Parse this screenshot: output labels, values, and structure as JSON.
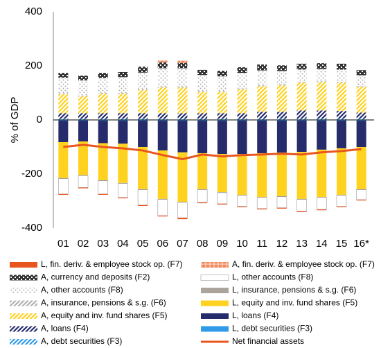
{
  "chart_data": {
    "type": "bar",
    "stacked": true,
    "y_label": "% of GDP",
    "categories": [
      "01",
      "02",
      "03",
      "04",
      "05",
      "06",
      "07",
      "08",
      "09",
      "10",
      "11",
      "12",
      "13",
      "14",
      "15",
      "16*"
    ],
    "ylim": [
      -400,
      400
    ],
    "yticks": [
      -400,
      -200,
      0,
      200,
      400
    ],
    "series": [
      {
        "name": "L, fin. deriv. & employee stock op. (F7)",
        "color": "#e8561e",
        "pattern": "solid",
        "values": [
          -3,
          -3,
          -3,
          -3,
          -3,
          -3,
          -5,
          -3,
          -3,
          -3,
          -3,
          -3,
          -3,
          -3,
          -3,
          -3
        ]
      },
      {
        "name": "A, fin. deriv. & employee stock op. (F7)",
        "color": "#f08a5a",
        "pattern": "grid",
        "values": [
          0,
          0,
          0,
          0,
          0,
          8,
          8,
          0,
          0,
          0,
          0,
          0,
          0,
          0,
          0,
          0
        ]
      },
      {
        "name": "A, currency and deposits (F2)",
        "color": "#333333",
        "pattern": "check",
        "values": [
          18,
          18,
          19,
          19,
          22,
          22,
          20,
          19,
          21,
          21,
          22,
          21,
          22,
          22,
          22,
          19
        ]
      },
      {
        "name": "L, other accounts (F8)",
        "color": "#ffffff",
        "pattern": "solid",
        "values": [
          -57,
          -44,
          -49,
          -52,
          -57,
          -60,
          -57,
          -47,
          -41,
          -41,
          -41,
          -41,
          -44,
          -44,
          -41,
          -37
        ]
      },
      {
        "name": "A, other accounts (F8)",
        "color": "#aaaaaa",
        "pattern": "dots",
        "values": [
          58,
          56,
          55,
          58,
          62,
          68,
          68,
          60,
          55,
          58,
          55,
          50,
          45,
          45,
          45,
          40
        ]
      },
      {
        "name": "L, insurance, pensions & s.g. (F6)",
        "color": "#aaa49c",
        "pattern": "solid",
        "values": [
          -2,
          -2,
          -2,
          -2,
          -2,
          -2,
          -2,
          -2,
          -2,
          -2,
          -2,
          -2,
          -2,
          -2,
          -2,
          -2
        ]
      },
      {
        "name": "A, insurance, pensions & s.g. (F6)",
        "color": "#b0b0b0",
        "pattern": "hatch",
        "values": [
          3,
          3,
          3,
          3,
          3,
          3,
          3,
          3,
          3,
          3,
          3,
          3,
          3,
          3,
          3,
          3
        ]
      },
      {
        "name": "L, equity and inv. fund shares (F5)",
        "color": "#ffd21f",
        "pattern": "solid",
        "values": [
          -133,
          -124,
          -137,
          -145,
          -156,
          -179,
          -183,
          -133,
          -141,
          -151,
          -162,
          -161,
          -174,
          -175,
          -172,
          -156
        ]
      },
      {
        "name": "A, equity and inv. fund shares (F5)",
        "color": "#ffd21f",
        "pattern": "hatch",
        "values": [
          70,
          62,
          72,
          72,
          85,
          95,
          95,
          78,
          78,
          88,
          95,
          98,
          103,
          105,
          105,
          95
        ]
      },
      {
        "name": "L, loans (F4)",
        "color": "#262b6b",
        "pattern": "solid",
        "values": [
          -79,
          -77,
          -83,
          -85,
          -97,
          -110,
          -117,
          -120,
          -123,
          -123,
          -120,
          -118,
          -115,
          -107,
          -102,
          -97
        ]
      },
      {
        "name": "A, loans (F4)",
        "color": "#262b6b",
        "pattern": "hatch",
        "values": [
          20,
          20,
          20,
          20,
          20,
          20,
          20,
          20,
          20,
          20,
          25,
          25,
          30,
          30,
          28,
          22
        ]
      },
      {
        "name": "L, debt securities (F3)",
        "color": "#2f9be8",
        "pattern": "solid",
        "values": [
          -3,
          -3,
          -3,
          -3,
          -3,
          -3,
          -3,
          -3,
          -3,
          -3,
          -3,
          -3,
          -3,
          -3,
          -3,
          -3
        ]
      },
      {
        "name": "A, debt securities (F3)",
        "color": "#2f9be8",
        "pattern": "hatch",
        "values": [
          5,
          5,
          5,
          5,
          5,
          5,
          5,
          5,
          5,
          5,
          5,
          5,
          5,
          5,
          5,
          5
        ]
      },
      {
        "name": "Net financial assets",
        "color": "#e8561e",
        "type": "line",
        "values": [
          -100,
          -92,
          -100,
          -105,
          -113,
          -130,
          -145,
          -128,
          -135,
          -130,
          -128,
          -125,
          -128,
          -120,
          -115,
          -108
        ]
      }
    ]
  }
}
